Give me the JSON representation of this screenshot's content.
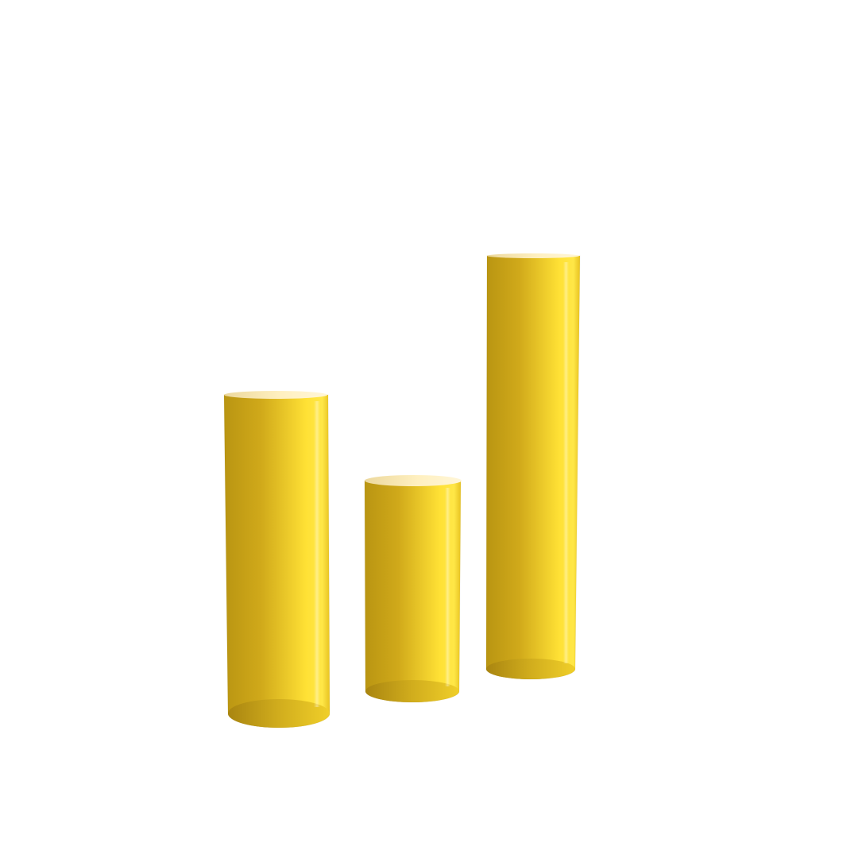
{
  "scene": {
    "background": "#ffffff",
    "object_type": "cylinder",
    "material": "glossy",
    "colors": {
      "body_light": "#ffe135",
      "body_mid": "#e7bf1f",
      "body_dark": "#b99512",
      "top_light": "#fff3c8",
      "top_dark": "#ecd89d"
    },
    "objects": [
      {
        "name": "left-cylinder",
        "relative_height": "tall"
      },
      {
        "name": "middle-cylinder",
        "relative_height": "short"
      },
      {
        "name": "right-cylinder",
        "relative_height": "tallest"
      }
    ]
  }
}
